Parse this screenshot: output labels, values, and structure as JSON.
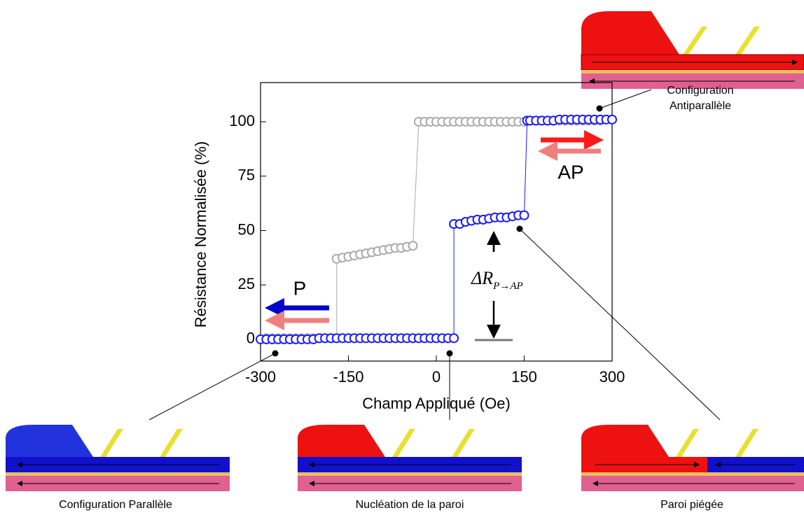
{
  "chart_data": {
    "type": "scatter",
    "x_label": "Champ Appliqué (Oe)",
    "y_label": "Résistance Normalisée (%)",
    "xlim": [
      -300,
      300
    ],
    "ylim": [
      -10,
      118
    ],
    "xticks": [
      -300,
      -150,
      0,
      150,
      300
    ],
    "yticks": [
      0,
      25,
      50,
      75,
      100
    ],
    "series": [
      {
        "color": "#aaaaaa",
        "x": [
          -290,
          -280,
          -270,
          -260,
          -250,
          -240,
          -230,
          -220,
          -210,
          -200,
          -190,
          -180,
          -170,
          -170,
          -160,
          -150,
          -140,
          -130,
          -120,
          -110,
          -100,
          -90,
          -80,
          -70,
          -60,
          -50,
          -40,
          -30,
          -20,
          -10,
          0,
          10,
          20,
          30,
          40,
          50,
          60,
          70,
          80,
          90,
          100,
          110,
          120,
          130,
          140,
          150,
          160,
          170,
          180,
          190,
          200,
          210,
          220,
          230,
          240,
          250,
          260,
          270,
          280
        ],
        "values": [
          0.5,
          0.5,
          0.5,
          0.5,
          0.5,
          0.5,
          0.5,
          0.5,
          0.5,
          0.5,
          0.5,
          0.5,
          0.5,
          37,
          37.5,
          38,
          38.5,
          39,
          39.5,
          40,
          40.5,
          41,
          41.5,
          42,
          42,
          42.5,
          43,
          100,
          100,
          100,
          100,
          100,
          100,
          100,
          100,
          100,
          100,
          100,
          100,
          100,
          100,
          100,
          100,
          100,
          100,
          100,
          100.5,
          100.5,
          100.5,
          100.5,
          100.5,
          100.5,
          100.5,
          100.5,
          100.5,
          100.5,
          100.5,
          100.5,
          100.5
        ]
      },
      {
        "color": "#1a1aff",
        "x": [
          -300,
          -290,
          -280,
          -270,
          -260,
          -250,
          -240,
          -230,
          -220,
          -210,
          -200,
          -190,
          -180,
          -170,
          -160,
          -150,
          -140,
          -130,
          -120,
          -110,
          -100,
          -90,
          -80,
          -70,
          -60,
          -50,
          -40,
          -30,
          -20,
          -10,
          0,
          10,
          20,
          30,
          30,
          40,
          50,
          60,
          70,
          80,
          90,
          100,
          110,
          120,
          130,
          140,
          150,
          155,
          160,
          170,
          180,
          190,
          200,
          210,
          220,
          230,
          240,
          250,
          260,
          270,
          280,
          290,
          300
        ],
        "values": [
          0,
          0,
          0,
          0,
          0,
          0,
          0,
          0,
          0,
          0,
          0.5,
          0.5,
          0.5,
          0.5,
          0.5,
          0.5,
          0.5,
          0.5,
          0.5,
          0.5,
          0.5,
          0.5,
          0.5,
          0.5,
          0.5,
          0.5,
          0.5,
          0.5,
          0.5,
          0.5,
          0.5,
          0.5,
          0.5,
          0.5,
          53,
          53,
          54,
          54.5,
          55,
          55,
          55.5,
          56,
          56,
          56,
          56.5,
          57,
          57,
          100.5,
          100.5,
          100.5,
          100.5,
          100.5,
          100.5,
          101,
          101,
          101,
          101,
          101,
          101,
          101,
          101,
          101,
          101
        ]
      }
    ],
    "annotations": {
      "p": "P",
      "ap": "AP",
      "delta_r": {
        "main": "ΔR",
        "sub": "P→AP"
      }
    },
    "captions": {
      "antiparallel": [
        "Configuration",
        "Antiparallèle"
      ],
      "parallel": "Configuration Parallèle",
      "nucleation": "Nucléation de la paroi",
      "pinned": "Paroi piégée"
    }
  }
}
